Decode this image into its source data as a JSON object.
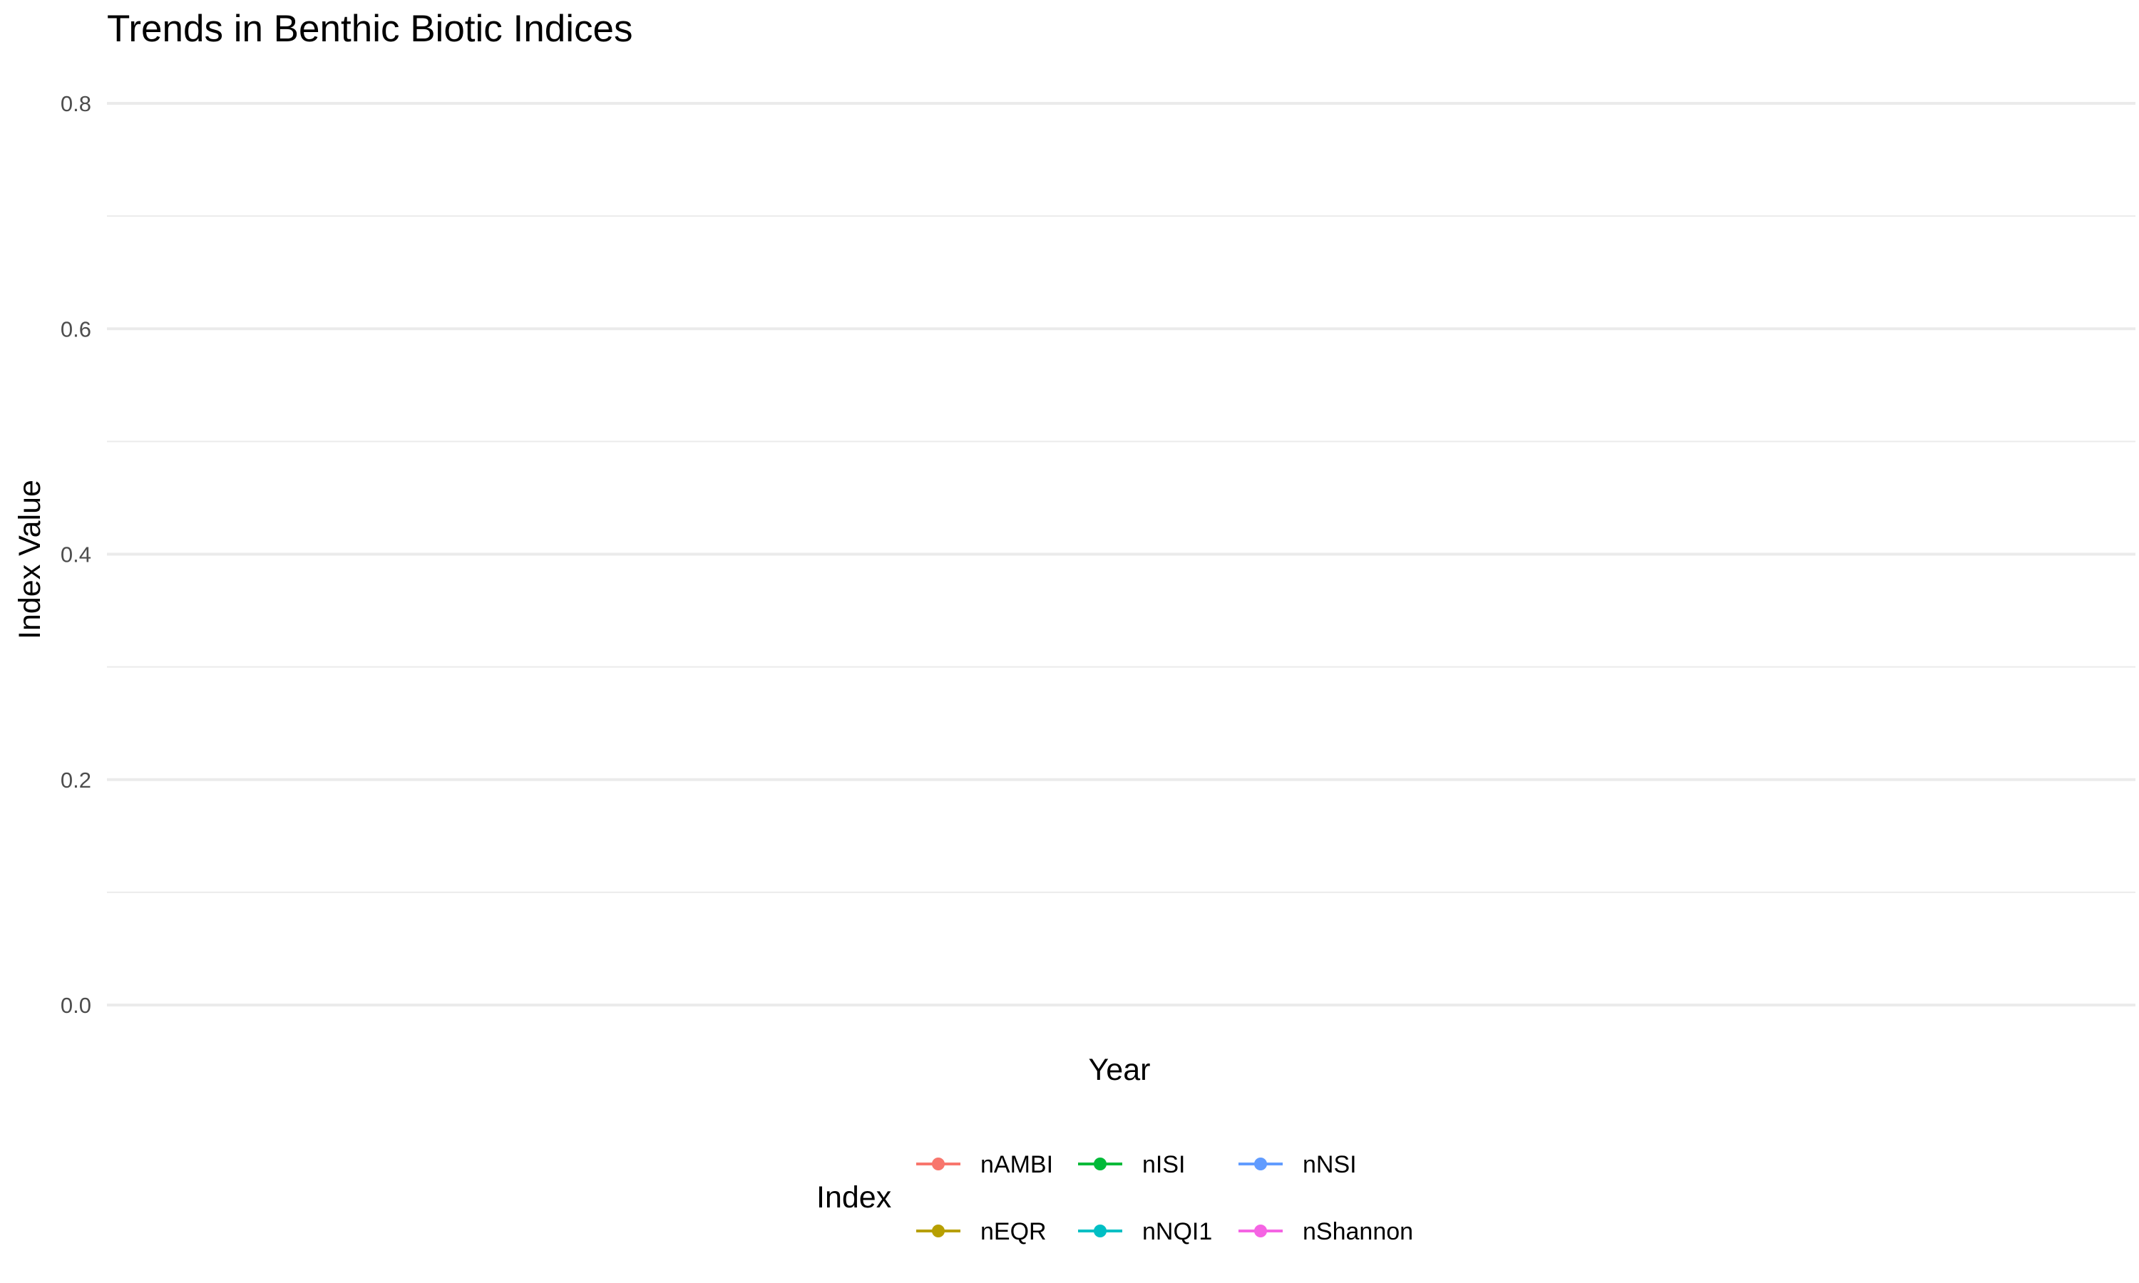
{
  "chart_data": {
    "type": "line",
    "title": "Trends in Benthic Biotic Indices",
    "xlabel": "Year",
    "ylabel": "Index Value",
    "ylim": [
      0,
      0.8
    ],
    "y_ticks": [
      "0.0",
      "0.2",
      "0.4",
      "0.6",
      "0.8"
    ],
    "y_tick_values": [
      0.0,
      0.2,
      0.4,
      0.6,
      0.8
    ],
    "y_minor_values": [
      0.1,
      0.3,
      0.5,
      0.7
    ],
    "grid": true,
    "legend": {
      "title": "Index",
      "position": "bottom"
    },
    "series": [
      {
        "name": "nAMBI",
        "color": "#F8766D",
        "x": [],
        "values": []
      },
      {
        "name": "nEQR",
        "color": "#B79F00",
        "x": [],
        "values": []
      },
      {
        "name": "nISI",
        "color": "#00BA38",
        "x": [],
        "values": []
      },
      {
        "name": "nNQI1",
        "color": "#00BFC4",
        "x": [],
        "values": []
      },
      {
        "name": "nNSI",
        "color": "#619CFF",
        "x": [],
        "values": []
      },
      {
        "name": "nShannon",
        "color": "#F564E3",
        "x": [],
        "values": []
      }
    ]
  }
}
